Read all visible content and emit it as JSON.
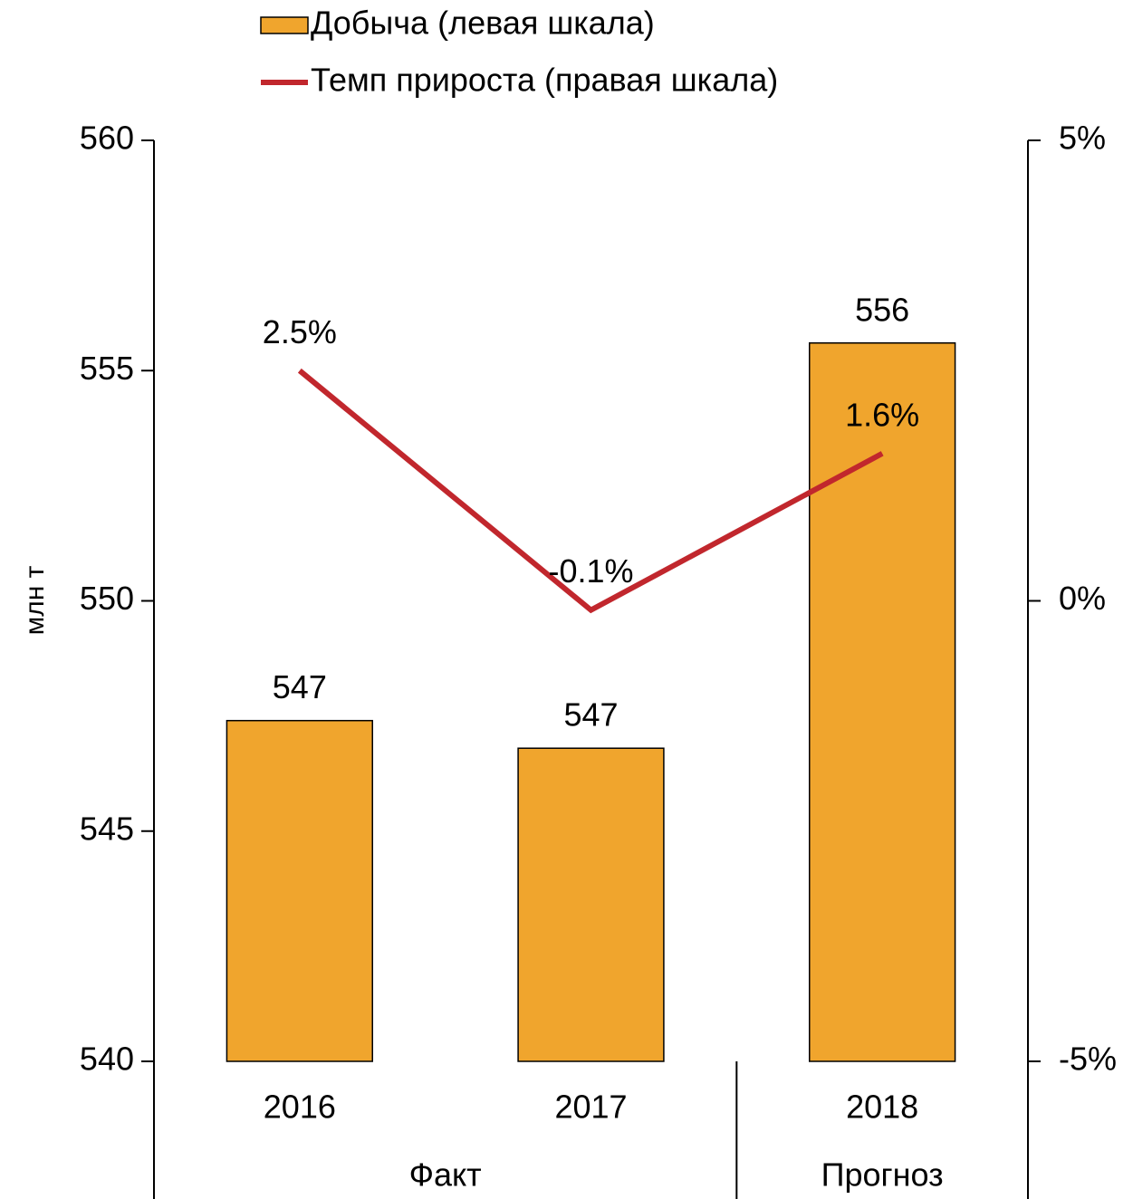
{
  "chart_data": {
    "type": "bar_line",
    "categories": [
      "2016",
      "2017",
      "2018"
    ],
    "groups": [
      {
        "label": "Факт",
        "count": 2
      },
      {
        "label": "Прогноз",
        "count": 1
      }
    ],
    "ylabel": "млн т",
    "series": [
      {
        "name": "Добыча (левая шкала)",
        "type": "bar",
        "color": "#f0a52d",
        "values": [
          547.4,
          546.8,
          555.6
        ],
        "value_labels": [
          "547",
          "547",
          "556"
        ]
      },
      {
        "name": "Темп прироста (правая шкала)",
        "type": "line",
        "axis": "y2",
        "color": "#c1272d",
        "values": [
          2.5,
          -0.1,
          1.6
        ],
        "value_labels": [
          "2.5%",
          "-0.1%",
          "1.6%"
        ]
      }
    ],
    "ylim": [
      540,
      560
    ],
    "yticks": [
      540,
      545,
      550,
      555,
      560
    ],
    "y2lim": [
      -5,
      5
    ],
    "y2ticks": [
      {
        "value": -5,
        "label": "-5%"
      },
      {
        "value": 0,
        "label": "0%"
      },
      {
        "value": 5,
        "label": "5%"
      }
    ],
    "grid": false,
    "legend": "top"
  }
}
